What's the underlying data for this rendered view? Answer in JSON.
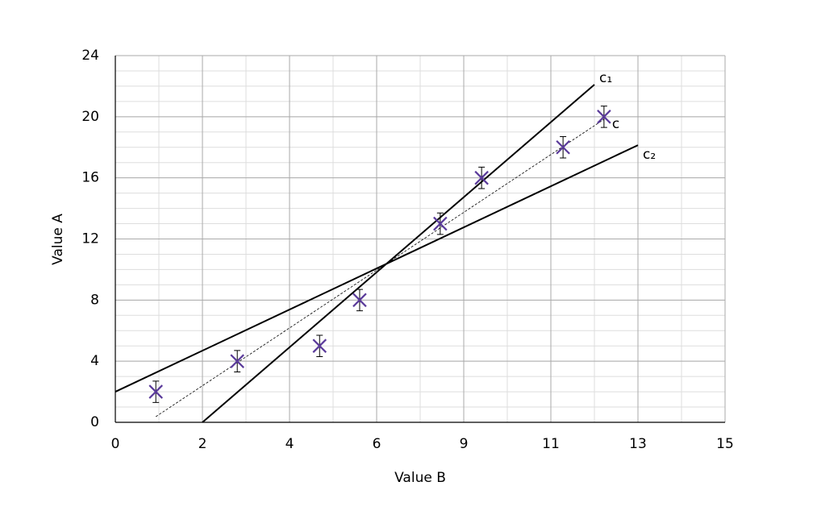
{
  "chart_data": {
    "type": "scatter",
    "xlabel": "Value B",
    "ylabel": "Value A",
    "xlim": [
      0,
      14
    ],
    "ylim": [
      0,
      24
    ],
    "xticks": [
      0,
      2,
      4,
      6,
      {
        "value": 8,
        "label": "9"
      },
      {
        "value": 10,
        "label": "11"
      },
      {
        "value": 12,
        "label": "13"
      },
      {
        "value": 14,
        "label": "15"
      }
    ],
    "yticks": [
      0,
      4,
      8,
      12,
      16,
      20,
      24
    ],
    "grid": true,
    "minor_grid_step": 1,
    "series": [
      {
        "color": "#5a3a9a",
        "x": [
          0.93,
          2.8,
          4.69,
          5.61,
          7.46,
          8.41,
          10.28,
          11.22
        ],
        "values": [
          2,
          4,
          5,
          8,
          13,
          16,
          18,
          20
        ],
        "errors": [
          0.7,
          0.7,
          0.7,
          0.7,
          0.7,
          0.7,
          0.7,
          0.7
        ]
      }
    ],
    "lines": [
      {
        "name": "c₁",
        "color": "#000000",
        "dashed": false,
        "x": [
          2,
          11
        ],
        "values": [
          0,
          22.1
        ]
      },
      {
        "name": "c",
        "color": "#000000",
        "dashed": true,
        "x": [
          0.93,
          11.22
        ],
        "values": [
          0.37,
          19.83
        ]
      },
      {
        "name": "c₂",
        "color": "#000000",
        "dashed": false,
        "x": [
          0,
          12
        ],
        "values": [
          2,
          18.14
        ]
      }
    ]
  }
}
